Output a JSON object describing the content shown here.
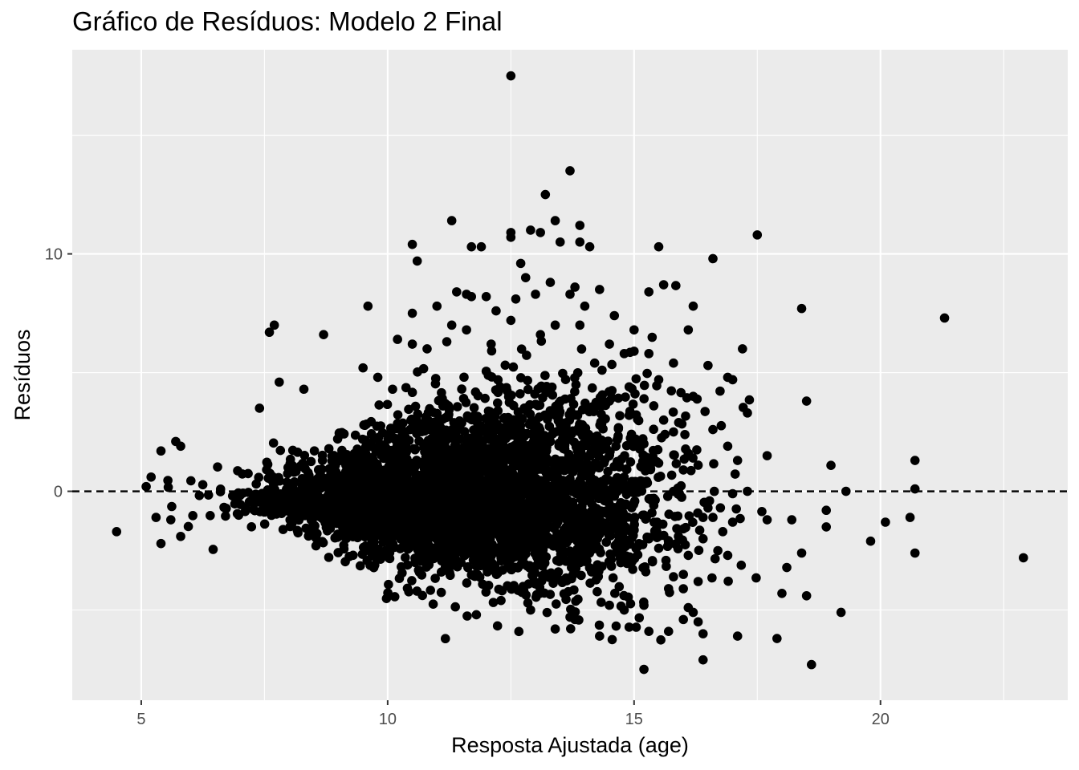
{
  "chart_data": {
    "type": "scatter",
    "title": "Gráfico de Resíduos: Modelo 2 Final",
    "xlabel": "Resposta Ajustada (age)",
    "ylabel": "Resíduos",
    "xlim": [
      3.6,
      23.8
    ],
    "ylim": [
      -8.8,
      18.6
    ],
    "x_ticks": [
      5,
      10,
      15,
      20
    ],
    "y_ticks": [
      0,
      10
    ],
    "reference_line": {
      "y": 0,
      "style": "dashed"
    },
    "grid": true,
    "background": "#ebebeb",
    "grid_color": "#ffffff",
    "point_color": "#000000",
    "n_points_approx": 4000,
    "points": [
      [
        12.5,
        17.5
      ],
      [
        13.7,
        13.5
      ],
      [
        13.2,
        12.5
      ],
      [
        13.4,
        11.4
      ],
      [
        13.9,
        11.2
      ],
      [
        11.3,
        11.4
      ],
      [
        12.5,
        10.9
      ],
      [
        12.5,
        10.7
      ],
      [
        12.9,
        11.0
      ],
      [
        13.1,
        10.9
      ],
      [
        13.5,
        10.5
      ],
      [
        13.9,
        10.5
      ],
      [
        14.1,
        10.3
      ],
      [
        10.5,
        10.4
      ],
      [
        10.6,
        9.7
      ],
      [
        11.7,
        10.3
      ],
      [
        11.9,
        10.3
      ],
      [
        12.7,
        9.6
      ],
      [
        12.8,
        9.0
      ],
      [
        15.5,
        10.3
      ],
      [
        16.6,
        9.8
      ],
      [
        17.5,
        10.8
      ],
      [
        21.3,
        7.3
      ],
      [
        18.4,
        7.7
      ],
      [
        18.5,
        3.8
      ],
      [
        17.2,
        6.0
      ],
      [
        17.0,
        4.7
      ],
      [
        16.2,
        7.8
      ],
      [
        16.1,
        6.8
      ],
      [
        15.6,
        8.7
      ],
      [
        15.3,
        8.4
      ],
      [
        15.0,
        6.8
      ],
      [
        16.5,
        5.3
      ],
      [
        16.9,
        4.8
      ],
      [
        17.3,
        3.3
      ],
      [
        17.7,
        1.5
      ],
      [
        16.9,
        1.9
      ],
      [
        17.1,
        1.3
      ],
      [
        16.2,
        4.0
      ],
      [
        16.6,
        2.6
      ],
      [
        7.6,
        6.7
      ],
      [
        7.7,
        7.0
      ],
      [
        8.7,
        6.6
      ],
      [
        9.6,
        7.8
      ],
      [
        7.4,
        3.5
      ],
      [
        7.8,
        4.6
      ],
      [
        8.3,
        4.3
      ],
      [
        9.5,
        5.2
      ],
      [
        9.8,
        4.8
      ],
      [
        10.1,
        4.3
      ],
      [
        4.5,
        -1.7
      ],
      [
        5.1,
        0.2
      ],
      [
        5.2,
        0.6
      ],
      [
        5.3,
        -1.1
      ],
      [
        5.4,
        -2.2
      ],
      [
        5.4,
        1.7
      ],
      [
        5.6,
        -1.2
      ],
      [
        5.7,
        2.1
      ],
      [
        5.8,
        -1.9
      ],
      [
        5.8,
        1.9
      ],
      [
        19.3,
        0.0
      ],
      [
        20.7,
        1.3
      ],
      [
        20.7,
        0.1
      ],
      [
        20.6,
        -1.1
      ],
      [
        20.1,
        -1.3
      ],
      [
        19.8,
        -2.1
      ],
      [
        20.7,
        -2.6
      ],
      [
        22.9,
        -2.8
      ],
      [
        18.9,
        -0.8
      ],
      [
        18.9,
        -1.5
      ],
      [
        18.4,
        -2.6
      ],
      [
        18.2,
        -1.2
      ],
      [
        17.7,
        -1.2
      ],
      [
        17.3,
        0.0
      ],
      [
        17.0,
        -0.1
      ],
      [
        17.0,
        -1.3
      ],
      [
        16.9,
        -2.7
      ],
      [
        16.7,
        -2.5
      ],
      [
        16.8,
        -1.7
      ],
      [
        16.6,
        -1.1
      ],
      [
        16.5,
        -0.7
      ],
      [
        16.4,
        -1.1
      ],
      [
        16.4,
        -2.0
      ],
      [
        16.3,
        -3.8
      ],
      [
        16.3,
        -5.5
      ],
      [
        16.2,
        -5.1
      ],
      [
        16.1,
        -4.9
      ],
      [
        16.0,
        -5.4
      ],
      [
        16.4,
        -6.0
      ],
      [
        16.4,
        -7.1
      ],
      [
        17.1,
        -6.1
      ],
      [
        17.9,
        -6.2
      ],
      [
        18.6,
        -7.3
      ],
      [
        15.2,
        -7.5
      ],
      [
        15.3,
        -5.9
      ],
      [
        15.7,
        -5.9
      ],
      [
        18.0,
        -4.3
      ],
      [
        18.5,
        -4.4
      ],
      [
        19.2,
        -5.1
      ],
      [
        14.3,
        -6.1
      ],
      [
        13.4,
        -5.8
      ],
      [
        11.8,
        -5.2
      ],
      [
        12.3,
        -4.6
      ],
      [
        12.9,
        -5.0
      ],
      [
        13.7,
        -5.3
      ],
      [
        13.8,
        -5.4
      ],
      [
        14.5,
        -4.8
      ],
      [
        14.8,
        -5.0
      ],
      [
        15.2,
        -4.8
      ],
      [
        15.7,
        -4.1
      ],
      [
        15.8,
        -3.6
      ],
      [
        16.0,
        -3.5
      ],
      [
        16.1,
        -2.7
      ],
      [
        15.5,
        -2.4
      ],
      [
        15.3,
        -2.0
      ],
      [
        15.7,
        -2.2
      ],
      [
        15.9,
        -1.9
      ],
      [
        15.5,
        -1.4
      ],
      [
        15.2,
        -1.0
      ],
      [
        15.0,
        -1.2
      ],
      [
        15.4,
        -0.3
      ],
      [
        15.8,
        0.0
      ],
      [
        16.0,
        0.9
      ],
      [
        16.3,
        1.1
      ],
      [
        16.1,
        1.6
      ],
      [
        15.8,
        2.5
      ],
      [
        15.6,
        3.0
      ],
      [
        15.4,
        3.6
      ],
      [
        15.2,
        2.0
      ],
      [
        15.5,
        4.7
      ],
      [
        15.8,
        5.4
      ],
      [
        15.3,
        5.8
      ],
      [
        15.0,
        5.9
      ],
      [
        14.9,
        4.4
      ],
      [
        14.5,
        3.8
      ],
      [
        14.3,
        8.5
      ],
      [
        14.0,
        7.8
      ],
      [
        13.8,
        8.6
      ],
      [
        13.7,
        8.3
      ],
      [
        13.9,
        7.0
      ],
      [
        12.0,
        8.2
      ],
      [
        11.7,
        8.2
      ],
      [
        11.4,
        8.4
      ],
      [
        11.6,
        8.3
      ],
      [
        12.6,
        8.1
      ],
      [
        13.0,
        8.3
      ],
      [
        13.3,
        8.8
      ],
      [
        12.2,
        7.6
      ],
      [
        11.0,
        7.8
      ],
      [
        10.5,
        7.5
      ],
      [
        11.3,
        7.0
      ],
      [
        11.6,
        6.8
      ],
      [
        12.5,
        7.2
      ],
      [
        13.4,
        7.0
      ],
      [
        13.1,
        6.6
      ],
      [
        14.6,
        7.4
      ],
      [
        14.5,
        6.2
      ],
      [
        14.2,
        5.4
      ],
      [
        14.8,
        5.8
      ],
      [
        14.9,
        3.2
      ],
      [
        10.2,
        6.4
      ],
      [
        10.5,
        6.2
      ],
      [
        10.8,
        6.0
      ],
      [
        11.2,
        6.3
      ],
      [
        12.1,
        6.2
      ]
    ]
  }
}
